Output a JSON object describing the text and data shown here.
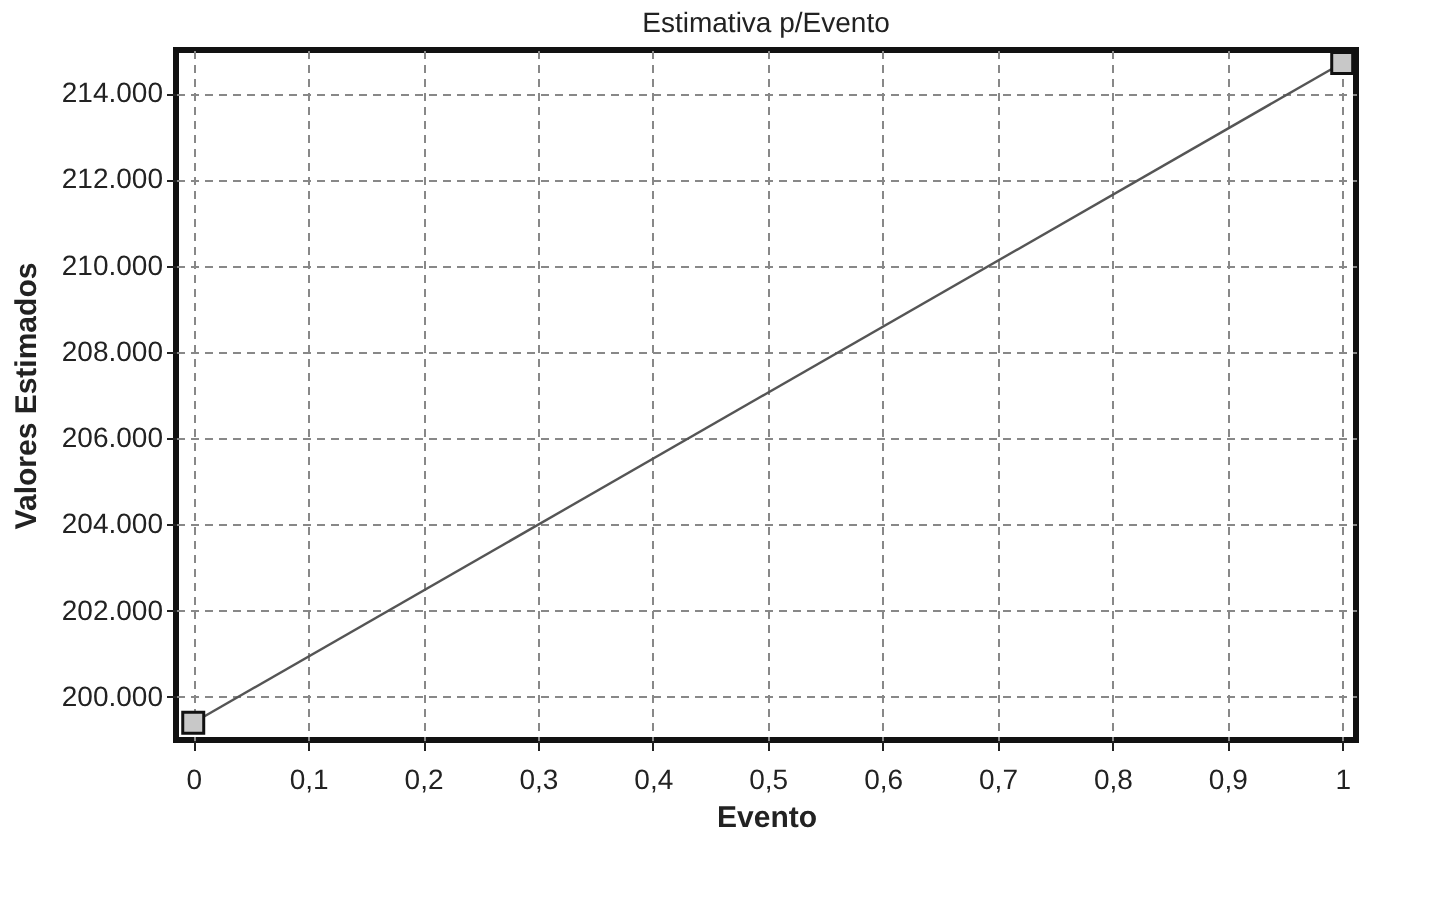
{
  "chart_data": {
    "type": "line",
    "title": "Estimativa p/Evento",
    "xlabel": "Evento",
    "ylabel": "Valores Estimados",
    "x": [
      0,
      1
    ],
    "series": [
      {
        "color": "#555555",
        "values": [
          199400,
          214700
        ]
      }
    ],
    "marker": "square",
    "line_style": "solid",
    "grid": true,
    "xlim": [
      -0.015,
      1.012
    ],
    "xticks": [
      0,
      {
        "value": 0.1,
        "label": "0,1"
      },
      {
        "value": 0.2,
        "label": "0,2"
      },
      {
        "value": 0.3,
        "label": "0,3"
      },
      {
        "value": 0.4,
        "label": "0,4"
      },
      {
        "value": 0.5,
        "label": "0,5"
      },
      {
        "value": 0.6,
        "label": "0,6"
      },
      {
        "value": 0.7,
        "label": "0,7"
      },
      {
        "value": 0.8,
        "label": "0,8"
      },
      {
        "value": 0.9,
        "label": "0,9"
      },
      1
    ],
    "ylim": [
      199000,
      215000
    ],
    "yticks": [
      {
        "value": 200000,
        "label": "200.000"
      },
      {
        "value": 202000,
        "label": "202.000"
      },
      {
        "value": 204000,
        "label": "204.000"
      },
      {
        "value": 206000,
        "label": "206.000"
      },
      {
        "value": 208000,
        "label": "208.000"
      },
      {
        "value": 210000,
        "label": "210.000"
      },
      {
        "value": 212000,
        "label": "212.000"
      },
      {
        "value": 214000,
        "label": "214.000"
      }
    ]
  }
}
